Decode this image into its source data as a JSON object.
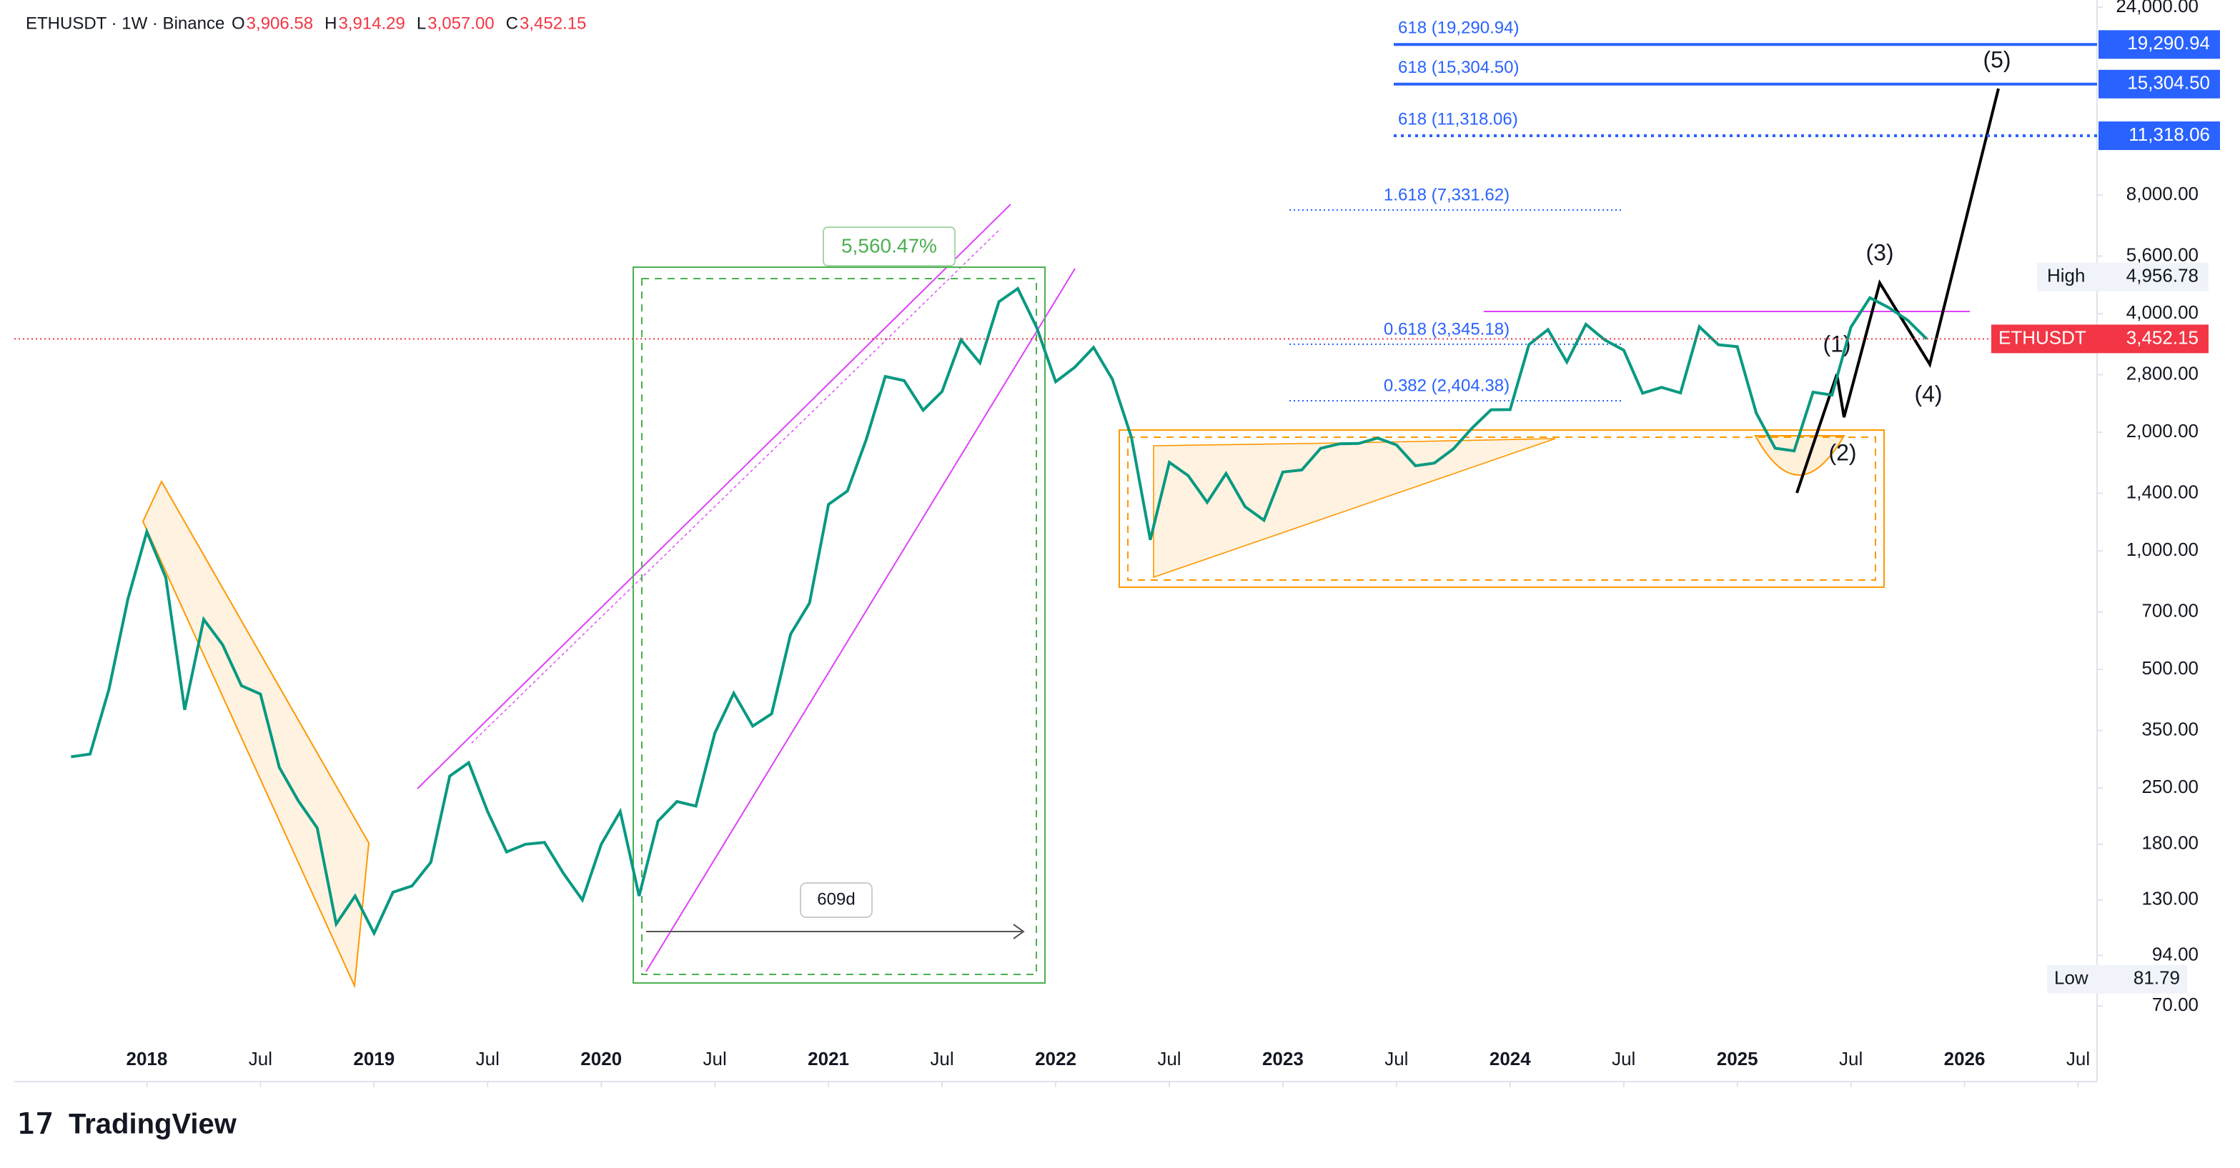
{
  "chart_data": {
    "type": "line",
    "header": {
      "symbol": "ETHUSDT · 1W · Binance",
      "ohlc": [
        {
          "label": "O",
          "value": "3,906.58"
        },
        {
          "label": "H",
          "value": "3,914.29"
        },
        {
          "label": "L",
          "value": "3,057.00"
        },
        {
          "label": "C",
          "value": "3,452.15"
        }
      ]
    },
    "log": true,
    "x": [
      "2017-09",
      "2017-10",
      "2017-11",
      "2017-12",
      "2018-01",
      "2018-02",
      "2018-03",
      "2018-04",
      "2018-05",
      "2018-06",
      "2018-07",
      "2018-08",
      "2018-09",
      "2018-10",
      "2018-11",
      "2018-12",
      "2019-01",
      "2019-02",
      "2019-03",
      "2019-04",
      "2019-05",
      "2019-06",
      "2019-07",
      "2019-08",
      "2019-09",
      "2019-10",
      "2019-11",
      "2019-12",
      "2020-01",
      "2020-02",
      "2020-03",
      "2020-04",
      "2020-05",
      "2020-06",
      "2020-07",
      "2020-08",
      "2020-09",
      "2020-10",
      "2020-11",
      "2020-12",
      "2021-01",
      "2021-02",
      "2021-03",
      "2021-04",
      "2021-05",
      "2021-06",
      "2021-07",
      "2021-08",
      "2021-09",
      "2021-10",
      "2021-11",
      "2021-12",
      "2022-01",
      "2022-02",
      "2022-03",
      "2022-04",
      "2022-05",
      "2022-06",
      "2022-07",
      "2022-08",
      "2022-09",
      "2022-10",
      "2022-11",
      "2022-12",
      "2023-01",
      "2023-02",
      "2023-03",
      "2023-04",
      "2023-05",
      "2023-06",
      "2023-07",
      "2023-08",
      "2023-09",
      "2023-10",
      "2023-11",
      "2023-12",
      "2024-01",
      "2024-02",
      "2024-03",
      "2024-04",
      "2024-05",
      "2024-06",
      "2024-07",
      "2024-08",
      "2024-09",
      "2024-10",
      "2024-11",
      "2024-12",
      "2025-01",
      "2025-02",
      "2025-03",
      "2025-04",
      "2025-05",
      "2025-06",
      "2025-07",
      "2025-08",
      "2025-09",
      "2025-10",
      "2025-11"
    ],
    "series": [
      {
        "name": "ETHUSDT",
        "color": "#089981",
        "values": [
          300,
          305,
          445,
          755,
          1118,
          855,
          395,
          670,
          578,
          455,
          433,
          282,
          232,
          198,
          113,
          133,
          107,
          136,
          141,
          162,
          268,
          290,
          218,
          172,
          180,
          182,
          152,
          130,
          180,
          218,
          133,
          206,
          231,
          225,
          345,
          435,
          359,
          386,
          615,
          737,
          1312,
          1418,
          1918,
          2772,
          2706,
          2275,
          2536,
          3433,
          3001,
          4288,
          4631,
          3683,
          2688,
          2920,
          3282,
          2726,
          1942,
          1067,
          1678,
          1553,
          1328,
          1572,
          1295,
          1196,
          1585,
          1605,
          1821,
          1870,
          1874,
          1934,
          1857,
          1645,
          1671,
          1815,
          2052,
          2282,
          2283,
          3340,
          3646,
          3014,
          3760,
          3433,
          3232,
          2513,
          2602,
          2518,
          3705,
          3337,
          3300,
          2237,
          1822,
          1794,
          2528,
          2486,
          3697,
          4391,
          4145,
          3850,
          3452
        ]
      }
    ],
    "xlim": [
      "2017-06",
      "2026-08"
    ],
    "xticks": [
      {
        "value": "2018-01",
        "label": "2018"
      },
      {
        "value": "2018-07",
        "label": "Jul"
      },
      {
        "value": "2019-01",
        "label": "2019"
      },
      {
        "value": "2019-07",
        "label": "Jul"
      },
      {
        "value": "2020-01",
        "label": "2020"
      },
      {
        "value": "2020-07",
        "label": "Jul"
      },
      {
        "value": "2021-01",
        "label": "2021"
      },
      {
        "value": "2021-07",
        "label": "Jul"
      },
      {
        "value": "2022-01",
        "label": "2022"
      },
      {
        "value": "2022-07",
        "label": "Jul"
      },
      {
        "value": "2023-01",
        "label": "2023"
      },
      {
        "value": "2023-07",
        "label": "Jul"
      },
      {
        "value": "2024-01",
        "label": "2024"
      },
      {
        "value": "2024-07",
        "label": "Jul"
      },
      {
        "value": "2025-01",
        "label": "2025"
      },
      {
        "value": "2025-07",
        "label": "Jul"
      },
      {
        "value": "2026-01",
        "label": "2026"
      },
      {
        "value": "2026-07",
        "label": "Jul"
      }
    ],
    "ylim": [
      70,
      24000
    ],
    "yticks": [
      {
        "value": 70,
        "label": "70.00"
      },
      {
        "value": 94,
        "label": "94.00"
      },
      {
        "value": 130,
        "label": "130.00"
      },
      {
        "value": 180,
        "label": "180.00"
      },
      {
        "value": 250,
        "label": "250.00"
      },
      {
        "value": 350,
        "label": "350.00"
      },
      {
        "value": 500,
        "label": "500.00"
      },
      {
        "value": 700,
        "label": "700.00"
      },
      {
        "value": 1000,
        "label": "1,000.00"
      },
      {
        "value": 1400,
        "label": "1,400.00"
      },
      {
        "value": 2000,
        "label": "2,000.00"
      },
      {
        "value": 2800,
        "label": "2,800.00"
      },
      {
        "value": 4000,
        "label": "4,000.00"
      },
      {
        "value": 5600,
        "label": "5,600.00"
      },
      {
        "value": 8000,
        "label": "8,000.00"
      },
      {
        "value": 24000,
        "label": "24,000.00"
      }
    ],
    "last_price": {
      "value": 3452.15,
      "label": "3,452.15",
      "color": "#f23645"
    },
    "high": {
      "label": "High",
      "value": 4956.78,
      "value_label": "4,956.78"
    },
    "low": {
      "label": "Low",
      "value": 81.79
    },
    "targets": [
      {
        "value": 19290.94,
        "label": "19,290.94",
        "fib_text": "618 (19,290.94)"
      },
      {
        "value": 15304.5,
        "label": "15,304.50",
        "fib_text": "618 (15,304.50)"
      },
      {
        "value": 11318.06,
        "label": "11,318.06",
        "fib_text": "618 (11,318.06)"
      }
    ],
    "fib_levels": [
      {
        "value": 7331.62,
        "text": "1.618 (7,331.62)"
      },
      {
        "value": 3345.18,
        "text": "0.618 (3,345.18)"
      },
      {
        "value": 2404.38,
        "text": "0.382 (2,404.38)"
      }
    ],
    "annotations": {
      "gain": "5,560.47%",
      "duration": "609d",
      "waves": [
        "(1)",
        "(2)",
        "(3)",
        "(4)",
        "(5)"
      ]
    },
    "brand": "TradingView"
  }
}
